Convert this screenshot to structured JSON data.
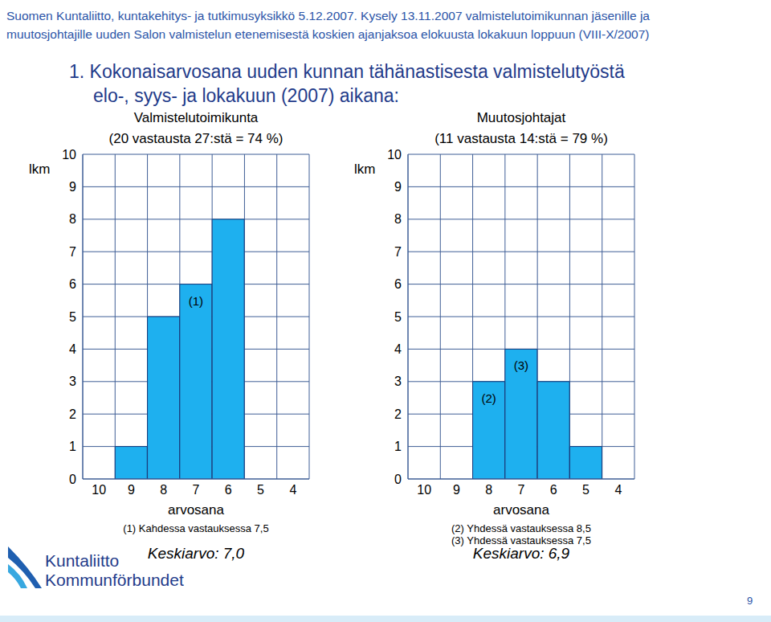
{
  "header": [
    "Suomen Kuntaliitto, kuntakehitys- ja tutkimusyksikkö 5.12.2007. Kysely 13.11.2007 valmistelutoimikunnan jäsenille ja",
    "muutosjohtajille uuden Salon valmistelun etenemisestä koskien ajanjaksoa elokuusta lokakuun loppuun (VIII-X/2007)"
  ],
  "title": [
    "1. Kokonaisarvosana uuden kunnan tähänastisesta valmistelutyöstä",
    "elo-, syys- ja lokakuun (2007) aikana:"
  ],
  "footer": {
    "logo": [
      "Kuntaliitto",
      "Kommunförbundet"
    ],
    "page": "9"
  },
  "chart_data": [
    {
      "type": "bar",
      "title": "Valmistelutoimikunta",
      "subtitle": "(20 vastausta 27:stä = 74 %)",
      "y_label": "lkm",
      "x_label": "arvosana",
      "categories": [
        "10",
        "9",
        "8",
        "7",
        "6",
        "5",
        "4"
      ],
      "values": [
        0,
        1,
        5,
        6,
        8,
        0,
        0
      ],
      "color": "#1eb0ef",
      "ylim": [
        0,
        10
      ],
      "yticks": [
        0,
        1,
        2,
        3,
        4,
        5,
        6,
        7,
        8,
        9,
        10
      ],
      "grid": true,
      "annotations": [
        {
          "category": "7",
          "text": "(1)"
        }
      ],
      "notes": [
        "(1) Kahdessa vastauksessa 7,5"
      ],
      "mean": "Keskiarvo: 7,0"
    },
    {
      "type": "bar",
      "title": "Muutosjohtajat",
      "subtitle": "(11 vastausta 14:stä = 79 %)",
      "y_label": "lkm",
      "x_label": "arvosana",
      "categories": [
        "10",
        "9",
        "8",
        "7",
        "6",
        "5",
        "4"
      ],
      "values": [
        0,
        0,
        3,
        4,
        3,
        1,
        0
      ],
      "color": "#1eb0ef",
      "ylim": [
        0,
        10
      ],
      "yticks": [
        0,
        1,
        2,
        3,
        4,
        5,
        6,
        7,
        8,
        9,
        10
      ],
      "grid": true,
      "annotations": [
        {
          "category": "8",
          "text": "(2)"
        },
        {
          "category": "7",
          "text": "(3)"
        }
      ],
      "notes": [
        "(2) Yhdessä vastauksessa 8,5",
        "(3) Yhdessä vastauksessa 7,5"
      ],
      "mean": "Keskiarvo: 6,9"
    }
  ]
}
